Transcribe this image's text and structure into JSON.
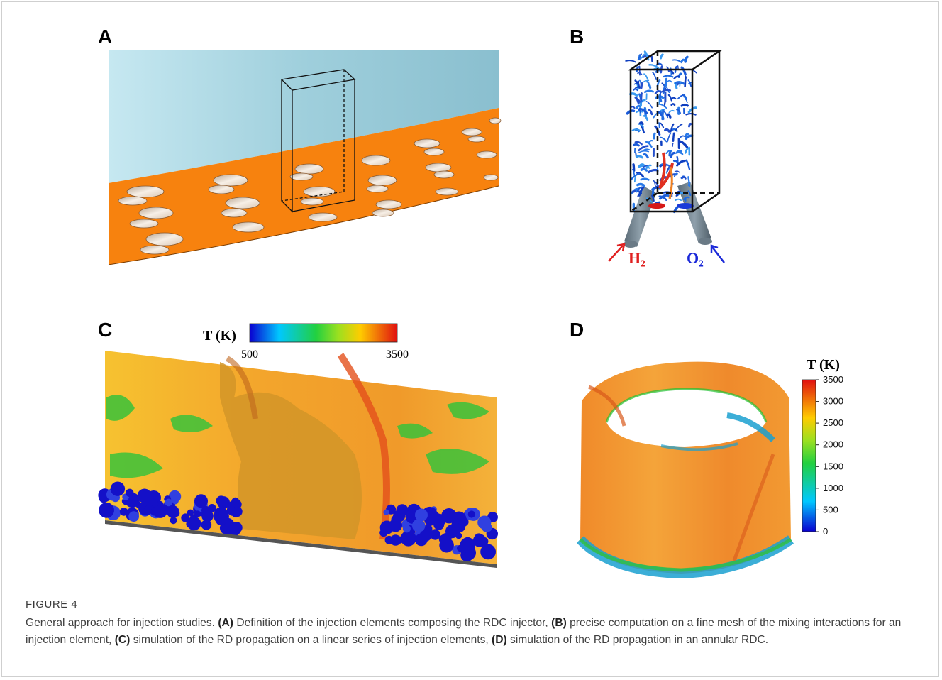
{
  "panels": {
    "a": {
      "label": "A"
    },
    "b": {
      "label": "B",
      "fuel_label": "H₂",
      "oxidizer_label": "O₂"
    },
    "c": {
      "label": "C",
      "colorbar": {
        "title": "T (K)",
        "min_label": "500",
        "max_label": "3500"
      }
    },
    "d": {
      "label": "D",
      "colorbar": {
        "title": "T (K)",
        "ticks": [
          "3500",
          "3000",
          "2500",
          "2000",
          "1500",
          "1000",
          "500",
          "0"
        ]
      }
    }
  },
  "colors": {
    "injector_plate": "#f7820e",
    "chamber_wall": "#9ccbd9",
    "fuel_arrow": "#e02020",
    "oxidizer_arrow": "#1a28d8"
  },
  "caption": {
    "label": "FIGURE 4",
    "intro": "General approach for injection studies.",
    "items": [
      {
        "tag": "(A)",
        "text": " Definition of the injection elements composing the RDC injector,"
      },
      {
        "tag": "(B)",
        "text": " precise computation on a fine mesh of the mixing interactions for an injection element,"
      },
      {
        "tag": "(C)",
        "text": " simulation of the RD propagation on a linear series of injection elements,"
      },
      {
        "tag": "(D)",
        "text": " simulation of the RD propagation in an annular RDC."
      }
    ]
  }
}
